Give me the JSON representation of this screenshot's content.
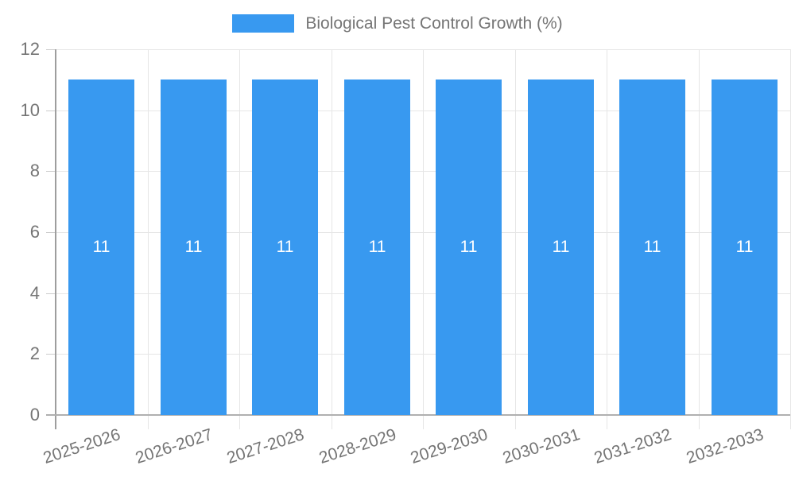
{
  "legend": {
    "label": "Biological Pest Control Growth (%)"
  },
  "colors": {
    "bar": "#3899F0",
    "axis_text": "#757575",
    "gridline": "#e6e6e6",
    "tick": "#cccccc",
    "y_axis_line": "#9e9e9e",
    "baseline": "#b0b0b0",
    "value_label": "#ffffff",
    "background": "#ffffff"
  },
  "chart_data": {
    "type": "bar",
    "title": "",
    "series": [
      {
        "name": "Biological Pest Control Growth (%)",
        "values": [
          11,
          11,
          11,
          11,
          11,
          11,
          11,
          11
        ]
      }
    ],
    "categories": [
      "2025-2026",
      "2026-2027",
      "2027-2028",
      "2028-2029",
      "2029-2030",
      "2030-2031",
      "2031-2032",
      "2032-2033"
    ],
    "bar_value_labels": [
      "11",
      "11",
      "11",
      "11",
      "11",
      "11",
      "11",
      "11"
    ],
    "xlabel": "",
    "ylabel": "",
    "ylim": [
      0,
      12
    ],
    "yticks": [
      0,
      2,
      4,
      6,
      8,
      10,
      12
    ],
    "grid": true,
    "legend_position": "top-center"
  }
}
